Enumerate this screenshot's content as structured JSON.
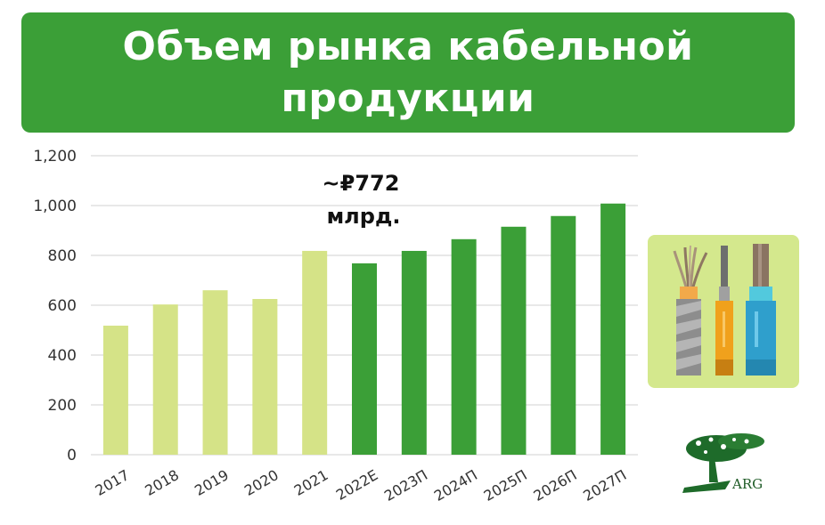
{
  "title": "Объем рынка кабельной продукции",
  "colors": {
    "banner": "#3b9f37",
    "actual_bar": "#d5e387",
    "forecast_bar": "#3b9f37",
    "grid": "#d0d0d0",
    "card": "#d4e88d"
  },
  "chart_data": {
    "type": "bar",
    "categories": [
      "2017",
      "2018",
      "2019",
      "2020",
      "2021",
      "2022E",
      "2023П",
      "2024П",
      "2025П",
      "2026П",
      "2027П"
    ],
    "values": [
      518,
      603,
      660,
      625,
      818,
      768,
      818,
      865,
      915,
      958,
      1008
    ],
    "kind": [
      "actual",
      "actual",
      "actual",
      "actual",
      "actual",
      "forecast",
      "forecast",
      "forecast",
      "forecast",
      "forecast",
      "forecast"
    ],
    "ylim": [
      0,
      1200
    ],
    "yticks": [
      0,
      200,
      400,
      600,
      800,
      1000,
      1200
    ],
    "ytick_labels": [
      "0",
      "200",
      "400",
      "600",
      "800",
      "1,000",
      "1,200"
    ],
    "grid": true,
    "annotation": {
      "line1": "~₽772",
      "line2": "млрд."
    }
  },
  "logo": {
    "text": "ARG",
    "icon": "tree-icon"
  },
  "illustration": {
    "icon": "cables-icon"
  }
}
